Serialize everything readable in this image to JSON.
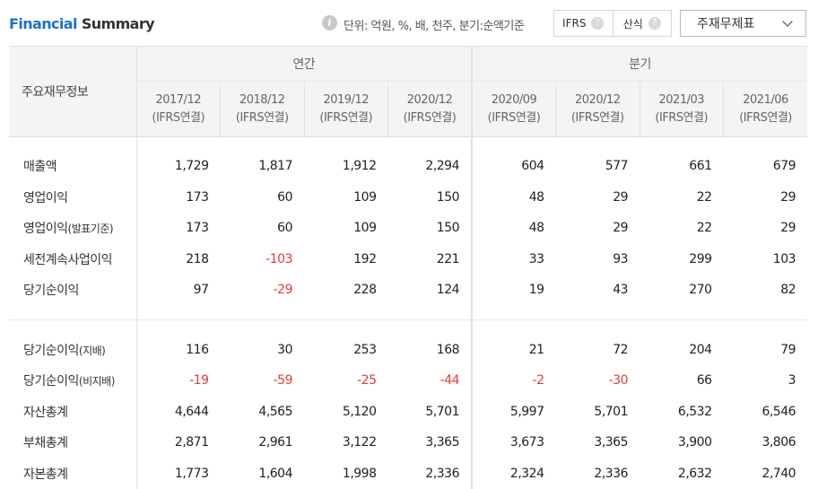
{
  "header": {
    "title_accent": "Financial",
    "title_rest": " Summary",
    "info_glyph": "i",
    "unit_note": "단위: 억원, %, 배, 천주, 분기:순액기준",
    "toggle": [
      {
        "label": "IFRS",
        "help": "?"
      },
      {
        "label": "산식",
        "help": "?"
      }
    ],
    "dropdown_label": "주재무제표"
  },
  "table": {
    "corner_label": "주요재무정보",
    "groups": [
      {
        "label": "연간"
      },
      {
        "label": "분기"
      }
    ],
    "columns": [
      {
        "period": "2017/12",
        "basis": "(IFRS연결)"
      },
      {
        "period": "2018/12",
        "basis": "(IFRS연결)"
      },
      {
        "period": "2019/12",
        "basis": "(IFRS연결)"
      },
      {
        "period": "2020/12",
        "basis": "(IFRS연결)"
      },
      {
        "period": "2020/09",
        "basis": "(IFRS연결)"
      },
      {
        "period": "2020/12",
        "basis": "(IFRS연결)"
      },
      {
        "period": "2021/03",
        "basis": "(IFRS연결)"
      },
      {
        "period": "2021/06",
        "basis": "(IFRS연결)"
      }
    ],
    "rows": [
      {
        "label": "매출액",
        "suffix": "",
        "values": [
          "1,729",
          "1,817",
          "1,912",
          "2,294",
          "604",
          "577",
          "661",
          "679"
        ]
      },
      {
        "label": "영업이익",
        "suffix": "",
        "values": [
          "173",
          "60",
          "109",
          "150",
          "48",
          "29",
          "22",
          "29"
        ]
      },
      {
        "label": "영업이익",
        "suffix": "(발표기준)",
        "values": [
          "173",
          "60",
          "109",
          "150",
          "48",
          "29",
          "22",
          "29"
        ]
      },
      {
        "label": "세전계속사업이익",
        "suffix": "",
        "values": [
          "218",
          "-103",
          "192",
          "221",
          "33",
          "93",
          "299",
          "103"
        ]
      },
      {
        "label": "당기순이익",
        "suffix": "",
        "values": [
          "97",
          "-29",
          "228",
          "124",
          "19",
          "43",
          "270",
          "82"
        ]
      },
      {
        "label": "당기순이익",
        "suffix": "(지배)",
        "values": [
          "116",
          "30",
          "253",
          "168",
          "21",
          "72",
          "204",
          "79"
        ]
      },
      {
        "label": "당기순이익",
        "suffix": "(비지배)",
        "values": [
          "-19",
          "-59",
          "-25",
          "-44",
          "-2",
          "-30",
          "66",
          "3"
        ]
      },
      {
        "label": "자산총계",
        "suffix": "",
        "values": [
          "4,644",
          "4,565",
          "5,120",
          "5,701",
          "5,997",
          "5,701",
          "6,532",
          "6,546"
        ]
      },
      {
        "label": "부채총계",
        "suffix": "",
        "values": [
          "2,871",
          "2,961",
          "3,122",
          "3,365",
          "3,673",
          "3,365",
          "3,900",
          "3,806"
        ]
      },
      {
        "label": "자본총계",
        "suffix": "",
        "values": [
          "1,773",
          "1,604",
          "1,998",
          "2,336",
          "2,324",
          "2,336",
          "2,632",
          "2,740"
        ]
      }
    ]
  }
}
